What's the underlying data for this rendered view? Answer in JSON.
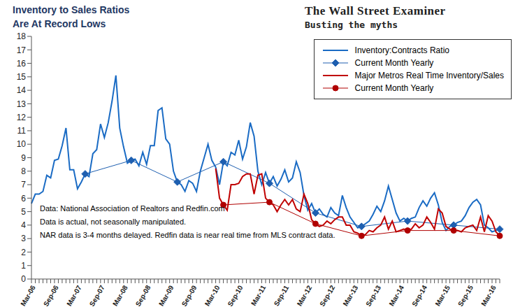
{
  "chart_data": {
    "type": "line",
    "title": "Inventory to Sales Ratios",
    "subtitle": "Are At Record Lows",
    "brand": "The Wall Street Examiner",
    "tagline": "Busting the myths",
    "annotations": [
      "Data: National Association of Realtors and Redfin.com",
      "Data is actual, not seasonally manipulated.",
      "NAR data is 3-4 months delayed. Redfin data is near real time from MLS contract data."
    ],
    "categories": [
      "Mar-06",
      null,
      null,
      null,
      null,
      null,
      "Sep-06",
      null,
      null,
      null,
      null,
      null,
      "Mar-07",
      null,
      null,
      null,
      null,
      null,
      "Sep-07",
      null,
      null,
      null,
      null,
      null,
      "Mar-08",
      null,
      null,
      null,
      null,
      null,
      "Sep-08",
      null,
      null,
      null,
      null,
      null,
      "Mar-09",
      null,
      null,
      null,
      null,
      null,
      "Sep-09",
      null,
      null,
      null,
      null,
      null,
      "Mar-10",
      null,
      null,
      null,
      null,
      null,
      "Sep-10",
      null,
      null,
      null,
      null,
      null,
      "Mar-11",
      null,
      null,
      null,
      null,
      null,
      "Sep-11",
      null,
      null,
      null,
      null,
      null,
      "Mar-12",
      null,
      null,
      null,
      null,
      null,
      "Sep-12",
      null,
      null,
      null,
      null,
      null,
      "Mar-13",
      null,
      null,
      null,
      null,
      null,
      "Sep-13",
      null,
      null,
      null,
      null,
      null,
      "Mar-14",
      null,
      null,
      null,
      null,
      null,
      "Sep-14",
      null,
      null,
      null,
      null,
      null,
      "Mar-15",
      null,
      null,
      null,
      null,
      null,
      "Sep-15",
      null,
      null,
      null,
      null,
      null,
      "Mar-16",
      null,
      null
    ],
    "series": [
      {
        "name": "Inventory:Contracts Ratio",
        "color": "#1a6bc4",
        "marker": "none",
        "line_style": "solid",
        "values": [
          5.6,
          6.3,
          6.3,
          6.5,
          7.7,
          7.5,
          8.8,
          8.9,
          9.9,
          11.2,
          8.1,
          8.1,
          6.7,
          7.2,
          7.8,
          7.6,
          9.3,
          9.6,
          11.5,
          10.5,
          11.6,
          13.2,
          15.1,
          11.2,
          9.8,
          8.6,
          8.8,
          8.9,
          8.4,
          9.4,
          8.5,
          9.9,
          9.9,
          12.5,
          12.7,
          10.4,
          10.0,
          8.0,
          7.2,
          7.0,
          6.5,
          7.3,
          7.1,
          6.5,
          8.0,
          9.0,
          10.0,
          8.8,
          8.3,
          7.0,
          8.7,
          8.4,
          9.4,
          9.2,
          10.3,
          8.9,
          9.8,
          11.6,
          10.6,
          8.0,
          7.0,
          7.9,
          7.1,
          7.6,
          6.9,
          7.4,
          8.1,
          7.2,
          7.5,
          8.7,
          7.9,
          6.2,
          5.1,
          5.6,
          4.9,
          5.2,
          4.8,
          4.6,
          5.3,
          4.9,
          4.7,
          6.2,
          5.3,
          4.6,
          4.2,
          3.8,
          3.9,
          4.1,
          4.3,
          4.8,
          5.4,
          5.0,
          5.8,
          6.9,
          5.9,
          4.9,
          4.3,
          4.5,
          4.3,
          4.5,
          4.6,
          5.3,
          5.8,
          5.4,
          6.0,
          6.4,
          5.5,
          4.2,
          3.6,
          3.9,
          4.0,
          4.2,
          4.3,
          4.7,
          5.3,
          5.7,
          5.9,
          5.5,
          4.0,
          3.8,
          3.5,
          3.6,
          3.7
        ]
      },
      {
        "name": "Current Month Yearly",
        "color": "#1e5fb0",
        "marker": "diamond",
        "line_style": "solid",
        "values": [
          null,
          null,
          null,
          null,
          null,
          null,
          null,
          null,
          null,
          null,
          null,
          null,
          null,
          null,
          7.8,
          null,
          null,
          null,
          null,
          null,
          null,
          null,
          null,
          null,
          null,
          null,
          8.8,
          null,
          null,
          null,
          null,
          null,
          null,
          null,
          null,
          null,
          null,
          null,
          7.2,
          null,
          null,
          null,
          null,
          null,
          null,
          null,
          null,
          null,
          null,
          null,
          8.7,
          null,
          null,
          null,
          null,
          null,
          null,
          null,
          null,
          null,
          null,
          null,
          7.1,
          null,
          null,
          null,
          null,
          null,
          null,
          null,
          null,
          null,
          null,
          null,
          4.9,
          null,
          null,
          null,
          null,
          null,
          null,
          null,
          null,
          null,
          null,
          null,
          3.9,
          null,
          null,
          null,
          null,
          null,
          null,
          null,
          null,
          null,
          null,
          null,
          4.3,
          null,
          null,
          null,
          null,
          null,
          null,
          null,
          null,
          null,
          null,
          null,
          4.0,
          null,
          null,
          null,
          null,
          null,
          null,
          null,
          null,
          null,
          null,
          null,
          3.7
        ]
      },
      {
        "name": "Major Metros Real Time Inventory/Sales",
        "color": "#c00000",
        "marker": "none",
        "line_style": "solid",
        "values": [
          null,
          null,
          null,
          null,
          null,
          null,
          null,
          null,
          null,
          null,
          null,
          null,
          null,
          null,
          null,
          null,
          null,
          null,
          null,
          null,
          null,
          null,
          null,
          null,
          null,
          null,
          null,
          null,
          null,
          null,
          null,
          null,
          null,
          null,
          null,
          null,
          null,
          null,
          null,
          null,
          null,
          null,
          null,
          null,
          null,
          null,
          null,
          null,
          8.2,
          6.0,
          5.5,
          5.1,
          7.0,
          7.0,
          7.1,
          7.6,
          7.8,
          7.8,
          6.3,
          7.7,
          7.8,
          6.0,
          5.7,
          5.5,
          5.0,
          5.5,
          5.9,
          5.5,
          5.9,
          5.2,
          5.0,
          6.3,
          5.6,
          4.4,
          4.1,
          3.9,
          4.0,
          4.3,
          4.1,
          4.4,
          4.6,
          4.6,
          4.0,
          4.0,
          3.5,
          3.4,
          3.2,
          3.3,
          3.6,
          3.5,
          3.8,
          4.0,
          4.6,
          3.7,
          4.3,
          3.5,
          3.6,
          3.7,
          3.6,
          3.7,
          4.1,
          3.8,
          4.0,
          4.6,
          4.2,
          3.7,
          5.2,
          4.9,
          3.9,
          3.7,
          3.6,
          3.6,
          3.5,
          3.8,
          3.9,
          4.0,
          3.6,
          4.6,
          3.5,
          4.7,
          4.3,
          3.5,
          3.2
        ]
      },
      {
        "name": "Current Month Yearly",
        "color": "#b00000",
        "marker": "circle",
        "line_style": "solid",
        "values": [
          null,
          null,
          null,
          null,
          null,
          null,
          null,
          null,
          null,
          null,
          null,
          null,
          null,
          null,
          null,
          null,
          null,
          null,
          null,
          null,
          null,
          null,
          null,
          null,
          null,
          null,
          null,
          null,
          null,
          null,
          null,
          null,
          null,
          null,
          null,
          null,
          null,
          null,
          null,
          null,
          null,
          null,
          null,
          null,
          null,
          null,
          null,
          null,
          null,
          null,
          5.5,
          null,
          null,
          null,
          null,
          null,
          null,
          null,
          null,
          null,
          null,
          null,
          5.7,
          null,
          null,
          null,
          null,
          null,
          null,
          null,
          null,
          null,
          null,
          null,
          4.1,
          null,
          null,
          null,
          null,
          null,
          null,
          null,
          null,
          null,
          null,
          null,
          3.2,
          null,
          null,
          null,
          null,
          null,
          null,
          null,
          null,
          null,
          null,
          null,
          3.6,
          null,
          null,
          null,
          null,
          null,
          null,
          null,
          null,
          null,
          null,
          null,
          3.6,
          null,
          null,
          null,
          null,
          null,
          null,
          null,
          null,
          null,
          null,
          null,
          3.2
        ]
      }
    ],
    "ylim": [
      0,
      18
    ],
    "yticks": [
      0,
      1,
      2,
      3,
      4,
      5,
      6,
      7,
      8,
      9,
      10,
      11,
      12,
      13,
      14,
      15,
      16,
      17,
      18
    ],
    "grid": false,
    "legend": "upper right"
  }
}
